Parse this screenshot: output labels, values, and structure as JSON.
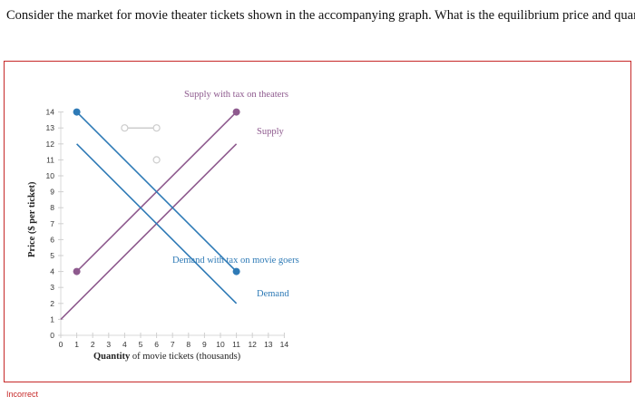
{
  "question": "Consider the market for movie theater tickets shown in the accompanying graph. What is the equilibrium price and quantity?",
  "status": "Incorrect",
  "colors": {
    "supply": "#8e5a8e",
    "demand": "#2e7ab6",
    "accent": "#c62828",
    "ghost": "#cccccc"
  },
  "chart_data": {
    "type": "line",
    "xlabel_bold": "Quantity",
    "xlabel_rest": " of movie tickets (thousands)",
    "ylabel": "Price ($ per ticket)",
    "xlim": [
      0,
      14
    ],
    "ylim": [
      0,
      14
    ],
    "xticks": [
      0,
      1,
      2,
      3,
      4,
      5,
      6,
      7,
      8,
      9,
      10,
      11,
      12,
      13,
      14
    ],
    "yticks": [
      0,
      1,
      2,
      3,
      4,
      5,
      6,
      7,
      8,
      9,
      10,
      11,
      12,
      13,
      14
    ],
    "series": [
      {
        "name": "Supply with tax on theaters",
        "color": "#8e5a8e",
        "x": [
          1,
          11
        ],
        "y": [
          4,
          14
        ]
      },
      {
        "name": "Supply",
        "color": "#8e5a8e",
        "x": [
          0,
          11
        ],
        "y": [
          1,
          12
        ]
      },
      {
        "name": "Demand with tax on movie goers",
        "color": "#2e7ab6",
        "x": [
          1,
          11
        ],
        "y": [
          14,
          4
        ]
      },
      {
        "name": "Demand",
        "color": "#2e7ab6",
        "x": [
          1,
          11
        ],
        "y": [
          12,
          2
        ]
      }
    ],
    "points": [
      {
        "name": "supply-tax-start-point",
        "x": 1,
        "y": 4,
        "color": "#8e5a8e"
      },
      {
        "name": "supply-tax-end-point",
        "x": 11,
        "y": 14,
        "color": "#8e5a8e"
      },
      {
        "name": "demand-tax-start-point",
        "x": 1,
        "y": 14,
        "color": "#2e7ab6"
      },
      {
        "name": "demand-tax-end-point",
        "x": 11,
        "y": 4,
        "color": "#2e7ab6"
      }
    ],
    "ghost_markers": [
      {
        "x": [
          4,
          6
        ],
        "y": [
          13,
          13
        ]
      },
      {
        "x": [
          6,
          6
        ],
        "y": [
          11,
          11
        ]
      }
    ]
  }
}
